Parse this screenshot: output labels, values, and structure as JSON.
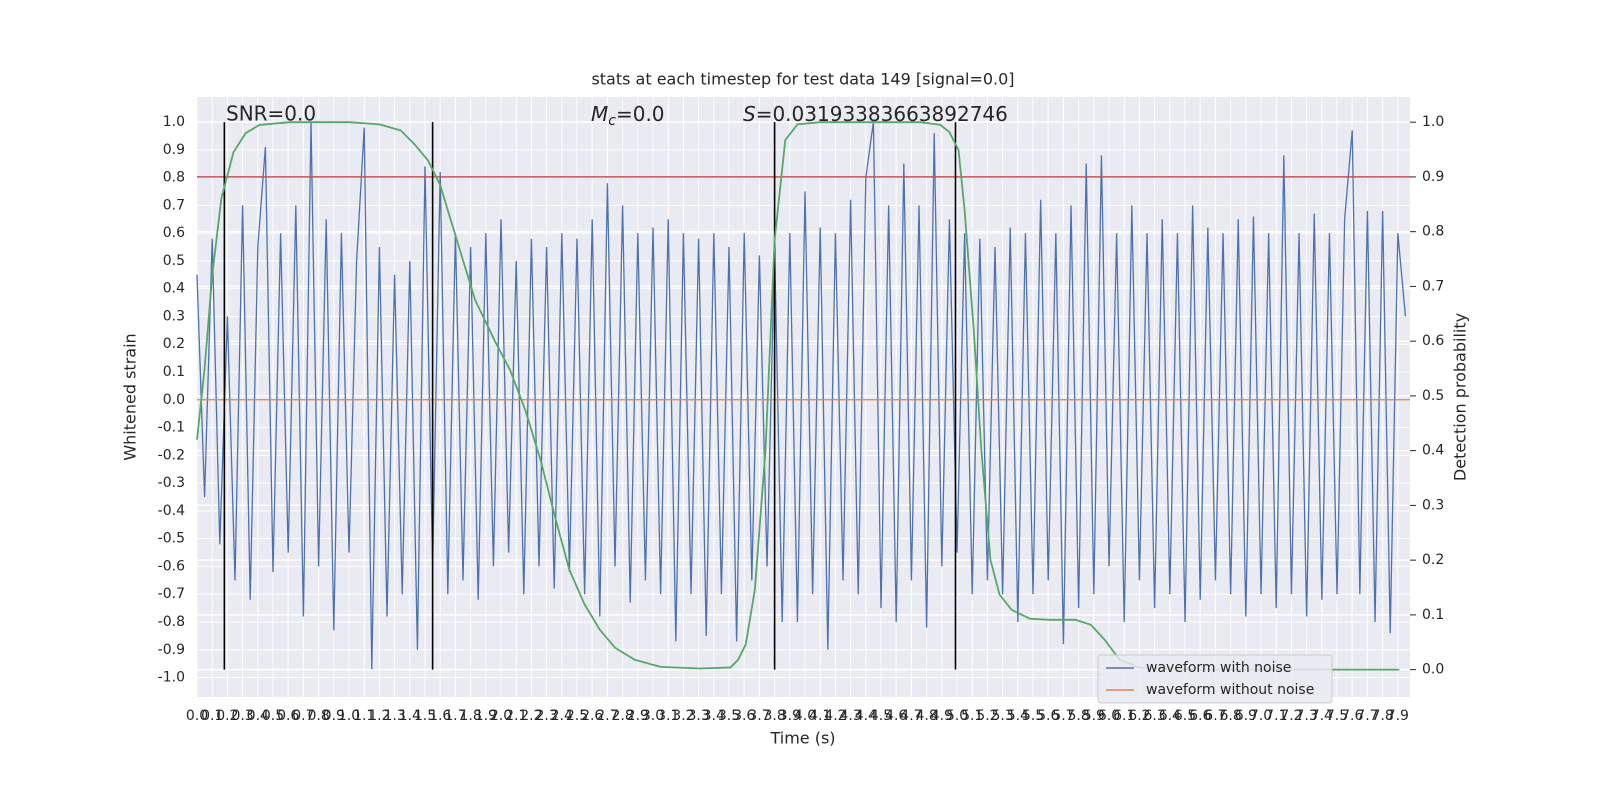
{
  "chart_data": {
    "type": "line",
    "title": "stats at each timestep for test data 149 [signal=0.0]",
    "snr_label": "SNR=0.0",
    "mc_label": {
      "symbol": "M",
      "subscript": "c",
      "text": "=0.0"
    },
    "s_label": {
      "symbol": "S",
      "text": "=0.03193383663892746"
    },
    "xlabel": "Time (s)",
    "ylabel": "Whitened strain",
    "y2label": "Detection probability",
    "xlim": [
      0,
      7.98
    ],
    "ylim": [
      -1.07,
      1.09
    ],
    "y2lim": [
      -0.05,
      1.046
    ],
    "grid": true,
    "legend": "lower right",
    "xticks": [
      {
        "value": 0,
        "label": "0.0"
      },
      0.1,
      0.2,
      0.3,
      0.4,
      0.5,
      0.6,
      0.7,
      0.8,
      0.9,
      {
        "value": 1,
        "label": "1.0"
      },
      1.1,
      1.2,
      1.3,
      1.4,
      1.5,
      1.6,
      1.7,
      1.8,
      1.9,
      {
        "value": 2,
        "label": "2.0"
      },
      2.1,
      2.2,
      2.3,
      2.4,
      2.5,
      2.6,
      2.7,
      2.8,
      2.9,
      {
        "value": 3,
        "label": "3.0"
      },
      3.1,
      3.2,
      3.3,
      3.4,
      3.5,
      3.6,
      3.7,
      3.8,
      3.9,
      {
        "value": 4,
        "label": "4.0"
      },
      4.1,
      4.2,
      4.3,
      4.4,
      4.5,
      4.6,
      4.7,
      4.8,
      4.9,
      {
        "value": 5,
        "label": "5.0"
      },
      5.1,
      5.2,
      5.3,
      5.4,
      5.5,
      5.6,
      5.7,
      5.8,
      5.9,
      {
        "value": 6,
        "label": "6.0"
      },
      6.1,
      6.2,
      6.3,
      6.4,
      6.5,
      6.6,
      6.7,
      6.8,
      6.9,
      {
        "value": 7,
        "label": "7.0"
      },
      7.1,
      7.2,
      7.3,
      7.4,
      7.5,
      7.6,
      7.7,
      7.8,
      7.9
    ],
    "yticks": [
      {
        "value": -1,
        "label": "-1.0"
      },
      -0.9,
      -0.8,
      -0.7,
      -0.6,
      -0.5,
      -0.4,
      -0.3,
      -0.2,
      -0.1,
      {
        "value": 0,
        "label": "0.0"
      },
      0.1,
      0.2,
      0.3,
      0.4,
      0.5,
      0.6,
      0.7,
      0.8,
      0.9,
      {
        "value": 1,
        "label": "1.0"
      }
    ],
    "y2ticks": [
      {
        "value": 0,
        "label": "0.0"
      },
      0.1,
      0.2,
      0.3,
      0.4,
      0.5,
      0.6,
      0.7,
      0.8,
      0.9,
      {
        "value": 1,
        "label": "1.0"
      }
    ],
    "hline": {
      "y": 0.9,
      "axis": "y2",
      "color": "#c44e52"
    },
    "vlines": {
      "x": [
        0.18,
        1.55,
        3.8,
        4.99
      ],
      "ymin": 0,
      "ymax": 1,
      "axis": "y2",
      "color": "#000000"
    },
    "series": [
      {
        "name": "waveform with noise",
        "color": "#4c72b0",
        "x": [
          0,
          0.05,
          0.1,
          0.15,
          0.2,
          0.25,
          0.3,
          0.35,
          0.4,
          0.45,
          0.5,
          0.55,
          0.6,
          0.65,
          0.7,
          0.75,
          0.8,
          0.85,
          0.9,
          0.95,
          1,
          1.05,
          1.1,
          1.15,
          1.2,
          1.25,
          1.3,
          1.35,
          1.4,
          1.45,
          1.5,
          1.55,
          1.6,
          1.65,
          1.7,
          1.75,
          1.8,
          1.85,
          1.9,
          1.95,
          2,
          2.05,
          2.1,
          2.15,
          2.2,
          2.25,
          2.3,
          2.35,
          2.4,
          2.45,
          2.5,
          2.55,
          2.6,
          2.65,
          2.7,
          2.75,
          2.8,
          2.85,
          2.9,
          2.95,
          3,
          3.05,
          3.1,
          3.15,
          3.2,
          3.25,
          3.3,
          3.35,
          3.4,
          3.45,
          3.5,
          3.55,
          3.6,
          3.65,
          3.7,
          3.75,
          3.8,
          3.85,
          3.9,
          3.95,
          4,
          4.05,
          4.1,
          4.15,
          4.2,
          4.25,
          4.3,
          4.35,
          4.4,
          4.45,
          4.5,
          4.55,
          4.6,
          4.65,
          4.7,
          4.75,
          4.8,
          4.85,
          4.9,
          4.95,
          5,
          5.05,
          5.1,
          5.15,
          5.2,
          5.25,
          5.3,
          5.35,
          5.4,
          5.45,
          5.5,
          5.55,
          5.6,
          5.65,
          5.7,
          5.75,
          5.8,
          5.85,
          5.9,
          5.95,
          6,
          6.05,
          6.1,
          6.15,
          6.2,
          6.25,
          6.3,
          6.35,
          6.4,
          6.45,
          6.5,
          6.55,
          6.6,
          6.65,
          6.7,
          6.75,
          6.8,
          6.85,
          6.9,
          6.95,
          7,
          7.05,
          7.1,
          7.15,
          7.2,
          7.25,
          7.3,
          7.35,
          7.4,
          7.45,
          7.5,
          7.55,
          7.6,
          7.65,
          7.7,
          7.75,
          7.8,
          7.85,
          7.9,
          7.95
        ],
        "values": [
          0.45,
          -0.35,
          0.58,
          -0.52,
          0.3,
          -0.65,
          0.7,
          -0.72,
          0.55,
          0.91,
          -0.62,
          0.6,
          -0.55,
          0.7,
          -0.78,
          1.0,
          -0.6,
          0.65,
          -0.83,
          0.6,
          -0.55,
          0.5,
          0.98,
          -0.97,
          0.55,
          -0.78,
          0.45,
          -0.7,
          0.5,
          -0.9,
          0.84,
          -0.6,
          0.82,
          -0.7,
          0.6,
          -0.65,
          0.55,
          -0.72,
          0.6,
          -0.6,
          0.65,
          -0.55,
          0.5,
          -0.7,
          0.58,
          -0.6,
          0.55,
          -0.68,
          0.6,
          -0.62,
          0.58,
          -0.7,
          0.65,
          -0.78,
          0.78,
          -0.6,
          0.7,
          -0.73,
          0.6,
          -0.65,
          0.62,
          -0.7,
          0.65,
          -0.87,
          0.6,
          -0.7,
          0.58,
          -0.85,
          0.6,
          -0.7,
          0.55,
          -0.87,
          0.6,
          -0.65,
          0.52,
          -0.6,
          0.55,
          -0.8,
          0.6,
          -0.8,
          0.75,
          -0.7,
          0.62,
          -0.9,
          0.6,
          -0.65,
          0.72,
          -0.7,
          0.8,
          1.0,
          -0.75,
          0.7,
          -0.8,
          0.85,
          -0.65,
          0.7,
          -0.82,
          0.96,
          -0.6,
          0.65,
          -0.55,
          0.6,
          -0.7,
          0.58,
          -0.65,
          0.55,
          -0.7,
          0.62,
          -0.8,
          0.6,
          -0.7,
          0.72,
          -0.65,
          0.6,
          -0.88,
          0.7,
          -0.75,
          0.85,
          -0.7,
          0.88,
          -0.6,
          0.6,
          -0.8,
          0.7,
          -0.65,
          0.6,
          -0.75,
          0.65,
          -0.7,
          0.6,
          -0.8,
          0.7,
          -0.72,
          0.62,
          -0.65,
          0.6,
          -0.7,
          0.65,
          -0.78,
          0.66,
          -0.7,
          0.6,
          -0.75,
          0.88,
          -0.7,
          0.6,
          -0.78,
          0.67,
          -0.72,
          0.6,
          -0.7,
          0.65,
          0.97,
          -0.7,
          0.68,
          -0.8,
          0.68,
          -0.84,
          0.6,
          0.3
        ]
      },
      {
        "name": "waveform without noise",
        "color": "#dd8452",
        "x": [
          0,
          7.98
        ],
        "values": [
          0,
          0
        ]
      },
      {
        "axis": "y2",
        "color": "#55a868",
        "x": [
          0,
          0.05,
          0.1,
          0.16,
          0.24,
          0.32,
          0.41,
          0.61,
          1.0,
          1.2,
          1.34,
          1.43,
          1.52,
          1.6,
          1.66,
          1.73,
          1.83,
          1.96,
          2.06,
          2.16,
          2.26,
          2.36,
          2.45,
          2.55,
          2.65,
          2.75,
          2.88,
          3.05,
          3.31,
          3.51,
          3.56,
          3.61,
          3.67,
          3.74,
          3.8,
          3.87,
          3.95,
          4.1,
          4.76,
          4.89,
          4.95,
          5.01,
          5.05,
          5.11,
          5.16,
          5.22,
          5.28,
          5.36,
          5.48,
          5.61,
          5.78,
          5.88,
          5.97,
          6.07,
          6.2,
          6.6,
          7.91
        ],
        "values": [
          0.42,
          0.55,
          0.72,
          0.86,
          0.945,
          0.98,
          0.995,
          1.0,
          1.0,
          0.996,
          0.985,
          0.96,
          0.93,
          0.885,
          0.83,
          0.766,
          0.675,
          0.6,
          0.547,
          0.474,
          0.383,
          0.274,
          0.182,
          0.119,
          0.073,
          0.04,
          0.018,
          0.005,
          0.002,
          0.004,
          0.018,
          0.046,
          0.146,
          0.401,
          0.785,
          0.967,
          0.996,
          1.0,
          1.0,
          0.995,
          0.982,
          0.949,
          0.839,
          0.62,
          0.401,
          0.2,
          0.137,
          0.109,
          0.093,
          0.091,
          0.091,
          0.082,
          0.055,
          0.018,
          0.004,
          0,
          0
        ]
      }
    ]
  }
}
